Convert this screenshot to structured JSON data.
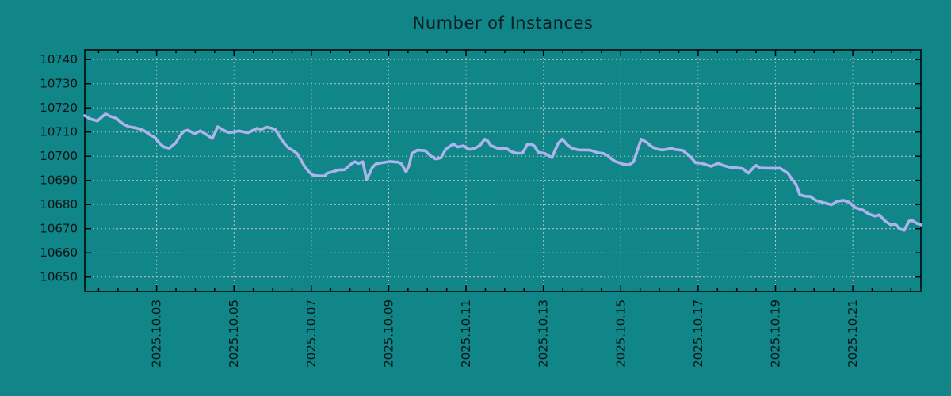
{
  "title": "Number of Instances",
  "colors": {
    "background": "#108689",
    "line": "#adb3ec",
    "grid": "#c9cfc9",
    "axis": "#000000",
    "title_text": "#0b1e22",
    "tick_text": "#0a1414"
  },
  "chart_data": {
    "type": "line",
    "title": "Number of Instances",
    "legend": false,
    "grid": true,
    "x_axis": {
      "unit": "date, October 2025 (day as decimal)",
      "range": [
        1.143,
        22.76
      ],
      "major_tick_positions": [
        3,
        5,
        7,
        9,
        11,
        13,
        15,
        17,
        19,
        21
      ],
      "major_tick_labels": [
        "2025.10.03",
        "2025.10.05",
        "2025.10.07",
        "2025.10.09",
        "2025.10.11",
        "2025.10.13",
        "2025.10.15",
        "2025.10.17",
        "2025.10.19",
        "2025.10.21"
      ],
      "minor_tick_interval": 0.5,
      "label_rotation_deg": -90
    },
    "y_axis": {
      "range": [
        10644,
        10744
      ],
      "major_tick_positions": [
        10650,
        10660,
        10670,
        10680,
        10690,
        10700,
        10710,
        10720,
        10730,
        10740
      ],
      "major_tick_labels": [
        "10650",
        "10660",
        "10670",
        "10680",
        "10690",
        "10700",
        "10710",
        "10720",
        "10730",
        "10740"
      ]
    },
    "series": [
      {
        "name": "instances",
        "color": "#adb3ec",
        "points": [
          [
            1.14,
            10716.8
          ],
          [
            1.27,
            10715.5
          ],
          [
            1.37,
            10715.0
          ],
          [
            1.47,
            10714.6
          ],
          [
            1.57,
            10716.0
          ],
          [
            1.68,
            10717.5
          ],
          [
            1.82,
            10716.4
          ],
          [
            1.96,
            10715.7
          ],
          [
            2.06,
            10714.2
          ],
          [
            2.17,
            10713.0
          ],
          [
            2.29,
            10712.2
          ],
          [
            2.43,
            10711.8
          ],
          [
            2.56,
            10711.3
          ],
          [
            2.68,
            10710.5
          ],
          [
            2.84,
            10708.7
          ],
          [
            2.95,
            10707.8
          ],
          [
            3.09,
            10705.1
          ],
          [
            3.19,
            10703.8
          ],
          [
            3.33,
            10703.3
          ],
          [
            3.5,
            10705.6
          ],
          [
            3.6,
            10708.4
          ],
          [
            3.7,
            10710.3
          ],
          [
            3.8,
            10710.8
          ],
          [
            3.91,
            10710.0
          ],
          [
            3.97,
            10709.2
          ],
          [
            4.07,
            10710.0
          ],
          [
            4.13,
            10710.5
          ],
          [
            4.23,
            10709.5
          ],
          [
            4.32,
            10708.6
          ],
          [
            4.44,
            10707.3
          ],
          [
            4.58,
            10712.2
          ],
          [
            4.73,
            10710.8
          ],
          [
            4.85,
            10709.8
          ],
          [
            4.99,
            10710.0
          ],
          [
            5.13,
            10710.5
          ],
          [
            5.26,
            10710.0
          ],
          [
            5.36,
            10709.7
          ],
          [
            5.46,
            10710.5
          ],
          [
            5.59,
            10711.5
          ],
          [
            5.71,
            10711.1
          ],
          [
            5.85,
            10712.0
          ],
          [
            5.97,
            10711.6
          ],
          [
            6.08,
            10710.9
          ],
          [
            6.14,
            10709.2
          ],
          [
            6.22,
            10707.1
          ],
          [
            6.32,
            10704.9
          ],
          [
            6.42,
            10703.3
          ],
          [
            6.53,
            10702.3
          ],
          [
            6.63,
            10701.1
          ],
          [
            6.73,
            10698.4
          ],
          [
            6.83,
            10695.7
          ],
          [
            6.94,
            10693.5
          ],
          [
            7.04,
            10692.1
          ],
          [
            7.18,
            10691.8
          ],
          [
            7.35,
            10691.8
          ],
          [
            7.41,
            10693.0
          ],
          [
            7.55,
            10693.5
          ],
          [
            7.69,
            10694.3
          ],
          [
            7.86,
            10694.4
          ],
          [
            8.02,
            10696.6
          ],
          [
            8.12,
            10697.7
          ],
          [
            8.22,
            10697.0
          ],
          [
            8.33,
            10697.7
          ],
          [
            8.43,
            10690.3
          ],
          [
            8.51,
            10693.0
          ],
          [
            8.57,
            10695.2
          ],
          [
            8.67,
            10696.8
          ],
          [
            8.84,
            10697.3
          ],
          [
            9.04,
            10697.8
          ],
          [
            9.25,
            10697.5
          ],
          [
            9.33,
            10696.8
          ],
          [
            9.45,
            10693.5
          ],
          [
            9.53,
            10696.3
          ],
          [
            9.6,
            10701.1
          ],
          [
            9.74,
            10702.5
          ],
          [
            9.94,
            10702.3
          ],
          [
            10.07,
            10700.3
          ],
          [
            10.21,
            10698.9
          ],
          [
            10.35,
            10699.3
          ],
          [
            10.48,
            10703.0
          ],
          [
            10.62,
            10704.5
          ],
          [
            10.68,
            10705.1
          ],
          [
            10.78,
            10703.8
          ],
          [
            10.93,
            10704.3
          ],
          [
            11.09,
            10702.8
          ],
          [
            11.23,
            10703.3
          ],
          [
            11.36,
            10704.5
          ],
          [
            11.48,
            10707.0
          ],
          [
            11.56,
            10706.3
          ],
          [
            11.64,
            10704.4
          ],
          [
            11.81,
            10703.3
          ],
          [
            12.05,
            10703.2
          ],
          [
            12.15,
            10702.0
          ],
          [
            12.3,
            10701.2
          ],
          [
            12.46,
            10701.2
          ],
          [
            12.59,
            10705.0
          ],
          [
            12.71,
            10704.8
          ],
          [
            12.77,
            10704.2
          ],
          [
            12.87,
            10701.6
          ],
          [
            13.04,
            10701.1
          ],
          [
            13.22,
            10699.4
          ],
          [
            13.38,
            10705.3
          ],
          [
            13.49,
            10707.1
          ],
          [
            13.61,
            10704.8
          ],
          [
            13.73,
            10703.3
          ],
          [
            13.9,
            10702.6
          ],
          [
            14.21,
            10702.5
          ],
          [
            14.41,
            10701.4
          ],
          [
            14.55,
            10701.1
          ],
          [
            14.66,
            10700.3
          ],
          [
            14.76,
            10698.9
          ],
          [
            14.86,
            10697.8
          ],
          [
            14.96,
            10697.3
          ],
          [
            15.06,
            10696.7
          ],
          [
            15.21,
            10696.4
          ],
          [
            15.33,
            10697.6
          ],
          [
            15.43,
            10702.5
          ],
          [
            15.53,
            10707.0
          ],
          [
            15.68,
            10705.6
          ],
          [
            15.78,
            10704.2
          ],
          [
            15.9,
            10703.1
          ],
          [
            16.05,
            10702.6
          ],
          [
            16.19,
            10702.8
          ],
          [
            16.29,
            10703.3
          ],
          [
            16.39,
            10702.8
          ],
          [
            16.5,
            10702.6
          ],
          [
            16.6,
            10702.4
          ],
          [
            16.8,
            10699.8
          ],
          [
            16.93,
            10697.3
          ],
          [
            17.07,
            10697.1
          ],
          [
            17.21,
            10696.5
          ],
          [
            17.34,
            10695.8
          ],
          [
            17.44,
            10696.5
          ],
          [
            17.52,
            10697.1
          ],
          [
            17.64,
            10696.2
          ],
          [
            17.83,
            10695.4
          ],
          [
            18.03,
            10695.1
          ],
          [
            18.15,
            10694.9
          ],
          [
            18.3,
            10693.0
          ],
          [
            18.44,
            10695.4
          ],
          [
            18.5,
            10696.2
          ],
          [
            18.6,
            10695.1
          ],
          [
            18.81,
            10695.0
          ],
          [
            19.12,
            10695.0
          ],
          [
            19.32,
            10693.0
          ],
          [
            19.42,
            10690.6
          ],
          [
            19.53,
            10688.4
          ],
          [
            19.63,
            10684.0
          ],
          [
            19.77,
            10683.4
          ],
          [
            19.9,
            10683.3
          ],
          [
            20.04,
            10681.7
          ],
          [
            20.24,
            10680.8
          ],
          [
            20.45,
            10679.9
          ],
          [
            20.59,
            10681.3
          ],
          [
            20.76,
            10681.7
          ],
          [
            20.9,
            10681.0
          ],
          [
            21.06,
            10678.8
          ],
          [
            21.27,
            10677.6
          ],
          [
            21.41,
            10676.1
          ],
          [
            21.57,
            10675.2
          ],
          [
            21.68,
            10675.7
          ],
          [
            21.84,
            10673.1
          ],
          [
            21.98,
            10671.6
          ],
          [
            22.09,
            10672.0
          ],
          [
            22.23,
            10669.8
          ],
          [
            22.33,
            10669.3
          ],
          [
            22.45,
            10673.1
          ],
          [
            22.54,
            10673.4
          ],
          [
            22.64,
            10672.3
          ],
          [
            22.76,
            10671.6
          ]
        ]
      }
    ]
  }
}
